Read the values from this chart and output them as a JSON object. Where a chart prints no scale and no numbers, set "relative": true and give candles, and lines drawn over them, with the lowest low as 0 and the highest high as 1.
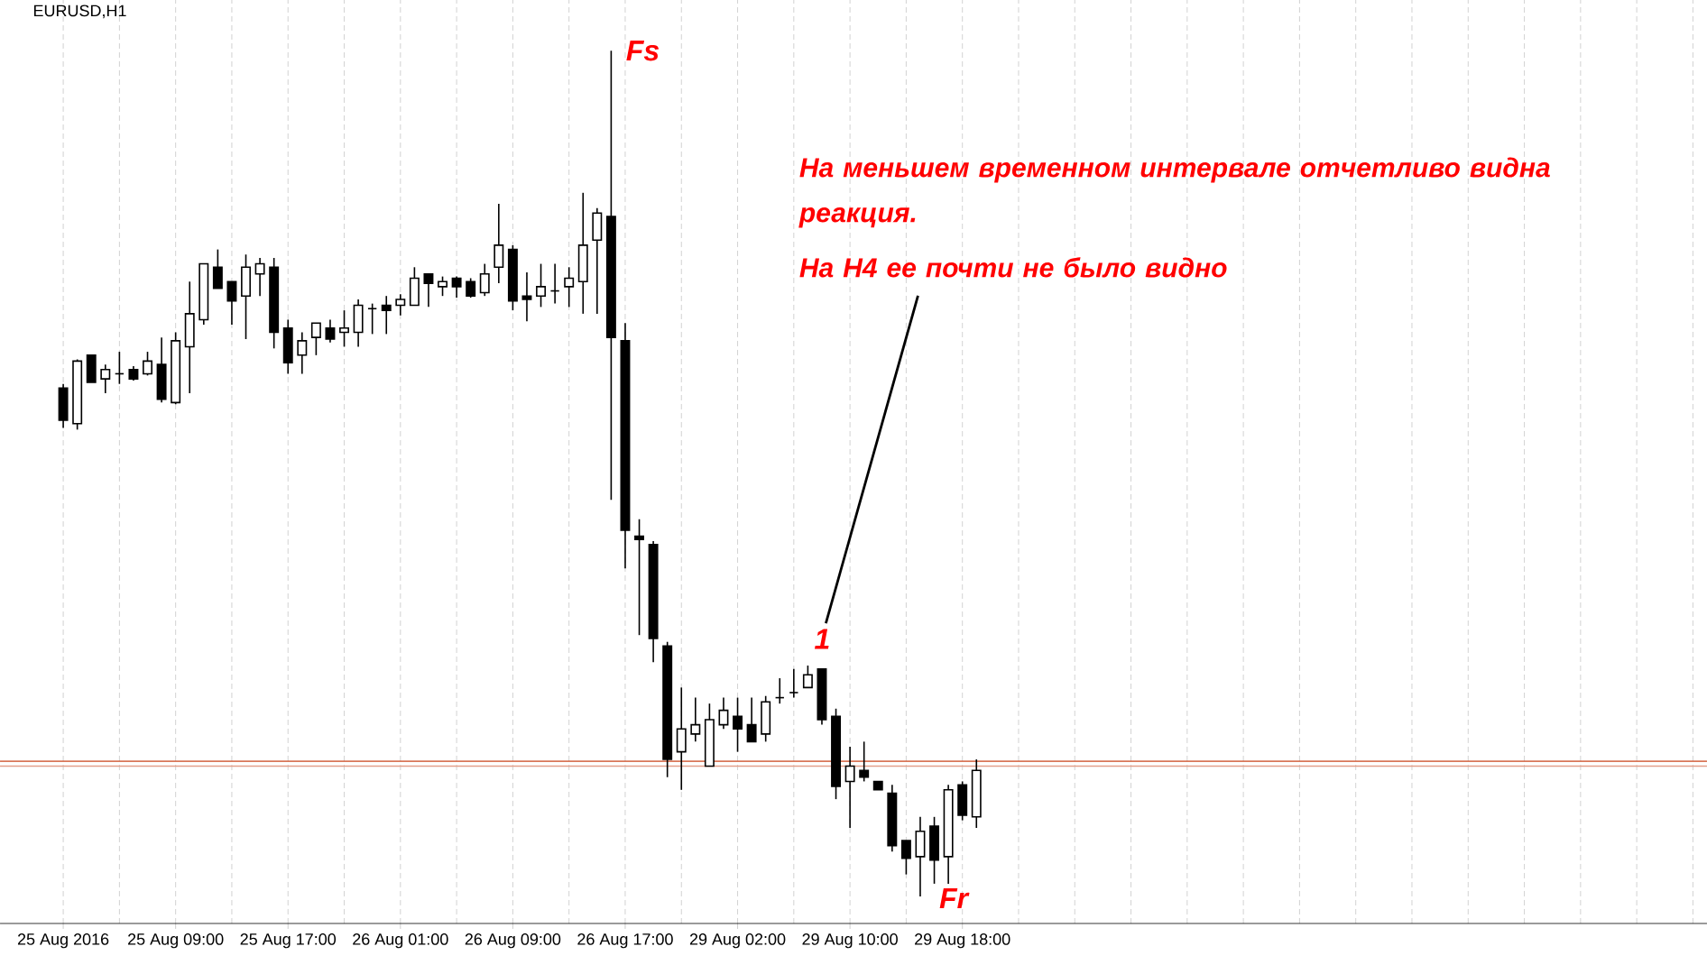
{
  "chart_data": {
    "type": "candlestick",
    "title": "EURUSD,H1",
    "relative": true,
    "color": "#000000",
    "grid": true,
    "categories": [
      "25 Aug 2016",
      null,
      null,
      null,
      null,
      null,
      null,
      null,
      "25 Aug 09:00",
      null,
      null,
      null,
      null,
      null,
      null,
      null,
      "25 Aug 17:00",
      null,
      null,
      null,
      null,
      null,
      null,
      null,
      "26 Aug 01:00",
      null,
      null,
      null,
      null,
      null,
      null,
      null,
      "26 Aug 09:00",
      null,
      null,
      null,
      null,
      null,
      null,
      null,
      "26 Aug 17:00",
      null,
      null,
      null,
      null,
      null,
      null,
      null,
      "29 Aug 02:00",
      null,
      null,
      null,
      null,
      null,
      null,
      null,
      "29 Aug 10:00",
      null,
      null,
      null,
      null,
      null,
      null,
      null,
      "29 Aug 18:00",
      null
    ],
    "ohlc": [
      [
        0.601,
        0.606,
        0.554,
        0.563
      ],
      [
        0.559,
        0.635,
        0.552,
        0.633
      ],
      [
        0.64,
        0.64,
        0.608,
        0.608
      ],
      [
        0.612,
        0.629,
        0.595,
        0.623
      ],
      [
        0.618,
        0.644,
        0.606,
        0.618
      ],
      [
        0.623,
        0.627,
        0.61,
        0.612
      ],
      [
        0.618,
        0.644,
        0.616,
        0.633
      ],
      [
        0.629,
        0.661,
        0.584,
        0.588
      ],
      [
        0.584,
        0.667,
        0.582,
        0.657
      ],
      [
        0.65,
        0.727,
        0.595,
        0.689
      ],
      [
        0.682,
        0.748,
        0.676,
        0.748
      ],
      [
        0.744,
        0.765,
        0.719,
        0.719
      ],
      [
        0.727,
        0.727,
        0.676,
        0.704
      ],
      [
        0.71,
        0.759,
        0.659,
        0.744
      ],
      [
        0.736,
        0.755,
        0.71,
        0.748
      ],
      [
        0.744,
        0.755,
        0.648,
        0.667
      ],
      [
        0.672,
        0.682,
        0.618,
        0.631
      ],
      [
        0.64,
        0.667,
        0.618,
        0.657
      ],
      [
        0.661,
        0.678,
        0.64,
        0.678
      ],
      [
        0.672,
        0.682,
        0.655,
        0.659
      ],
      [
        0.667,
        0.693,
        0.65,
        0.672
      ],
      [
        0.667,
        0.706,
        0.65,
        0.699
      ],
      [
        0.695,
        0.701,
        0.665,
        0.695
      ],
      [
        0.699,
        0.71,
        0.665,
        0.693
      ],
      [
        0.699,
        0.712,
        0.687,
        0.706
      ],
      [
        0.699,
        0.744,
        0.699,
        0.731
      ],
      [
        0.736,
        0.736,
        0.697,
        0.725
      ],
      [
        0.721,
        0.733,
        0.71,
        0.727
      ],
      [
        0.731,
        0.733,
        0.708,
        0.721
      ],
      [
        0.727,
        0.731,
        0.708,
        0.71
      ],
      [
        0.714,
        0.748,
        0.71,
        0.736
      ],
      [
        0.744,
        0.819,
        0.725,
        0.77
      ],
      [
        0.765,
        0.77,
        0.693,
        0.704
      ],
      [
        0.71,
        0.738,
        0.68,
        0.706
      ],
      [
        0.71,
        0.748,
        0.697,
        0.721
      ],
      [
        0.716,
        0.748,
        0.701,
        0.716
      ],
      [
        0.721,
        0.744,
        0.697,
        0.731
      ],
      [
        0.727,
        0.832,
        0.689,
        0.77
      ],
      [
        0.776,
        0.814,
        0.689,
        0.808
      ],
      [
        0.804,
        1,
        0.469,
        0.661
      ],
      [
        0.657,
        0.678,
        0.388,
        0.433
      ],
      [
        0.426,
        0.446,
        0.309,
        0.422
      ],
      [
        0.416,
        0.42,
        0.277,
        0.305
      ],
      [
        0.296,
        0.301,
        0.141,
        0.162
      ],
      [
        0.171,
        0.247,
        0.126,
        0.198
      ],
      [
        0.192,
        0.235,
        0.183,
        0.203
      ],
      [
        0.154,
        0.228,
        0.154,
        0.209
      ],
      [
        0.203,
        0.235,
        0.198,
        0.22
      ],
      [
        0.213,
        0.235,
        0.171,
        0.198
      ],
      [
        0.203,
        0.235,
        0.183,
        0.183
      ],
      [
        0.192,
        0.237,
        0.183,
        0.23
      ],
      [
        0.235,
        0.258,
        0.228,
        0.235
      ],
      [
        0.241,
        0.269,
        0.235,
        0.241
      ],
      [
        0.247,
        0.273,
        0.247,
        0.262
      ],
      [
        0.269,
        0.269,
        0.203,
        0.209
      ],
      [
        0.213,
        0.222,
        0.115,
        0.13
      ],
      [
        0.136,
        0.177,
        0.081,
        0.154
      ],
      [
        0.149,
        0.183,
        0.136,
        0.141
      ],
      [
        0.136,
        0.136,
        0.126,
        0.126
      ],
      [
        0.122,
        0.132,
        0.053,
        0.06
      ],
      [
        0.066,
        0.066,
        0.026,
        0.045
      ],
      [
        0.047,
        0.094,
        0,
        0.077
      ],
      [
        0.083,
        0.094,
        0.015,
        0.043
      ],
      [
        0.047,
        0.132,
        0.015,
        0.126
      ],
      [
        0.132,
        0.136,
        0.09,
        0.096
      ],
      [
        0.094,
        0.162,
        0.081,
        0.149
      ]
    ],
    "ref_lines": [
      {
        "axis": "y",
        "value": 0.16,
        "color": "#cc4a22"
      },
      {
        "axis": "y",
        "value": 0.154,
        "color": "#e3a08c"
      }
    ],
    "annotations": [
      "Fs",
      "Fr",
      {
        "text": "1",
        "y": 0.273
      },
      "На меньшем временном интервале отчетливо видна реакция.",
      "На H4 ее почти не было видно"
    ]
  }
}
